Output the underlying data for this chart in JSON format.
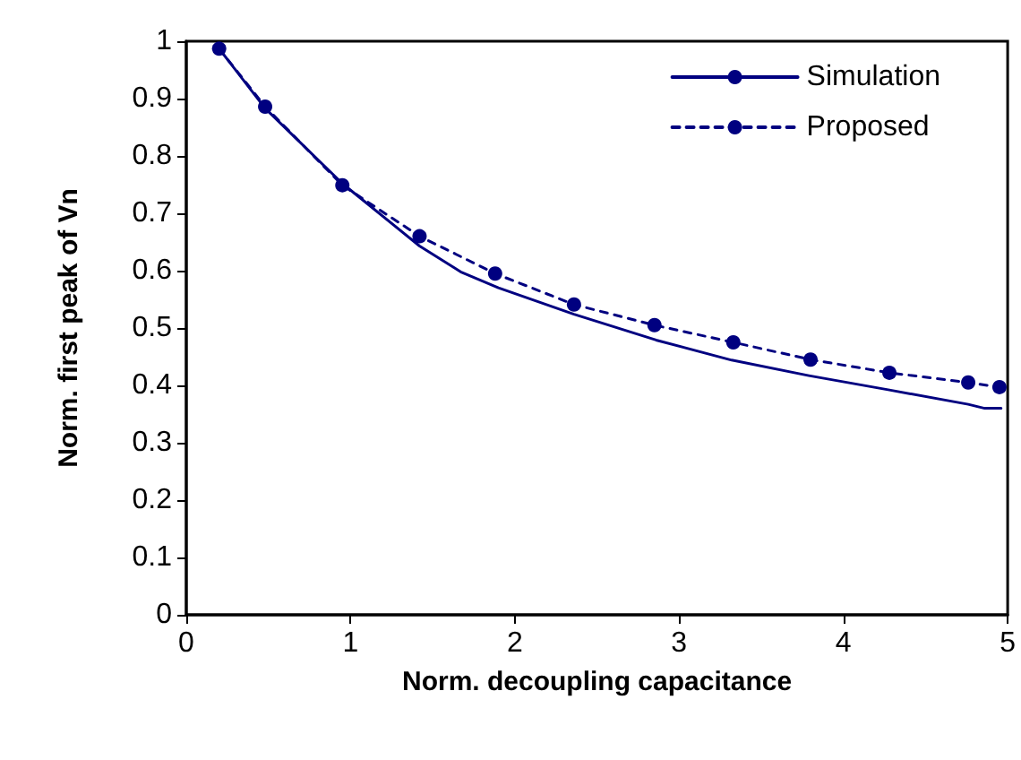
{
  "chart_data": {
    "type": "line",
    "xlabel": "Norm. decoupling capacitance",
    "ylabel": "Norm. first peak of Vn",
    "xlim": [
      0,
      5
    ],
    "xticks": [
      0,
      1,
      2,
      3,
      4,
      5
    ],
    "ylim": [
      0,
      1
    ],
    "yticks": [
      0,
      0.1,
      0.2,
      0.3,
      0.4,
      0.5,
      0.6,
      0.7,
      0.8,
      0.9,
      1
    ],
    "grid": false,
    "legend": "top right",
    "series": [
      {
        "name": "Simulation",
        "color": "#000080",
        "line_style": "solid",
        "marker": "none",
        "x": [
          0.2,
          0.48,
          0.95,
          1.42,
          1.67,
          1.9,
          2.36,
          2.86,
          3.32,
          3.79,
          4.28,
          4.76,
          4.86,
          4.96
        ],
        "values": [
          0.987,
          0.883,
          0.752,
          0.643,
          0.598,
          0.57,
          0.524,
          0.479,
          0.444,
          0.417,
          0.392,
          0.367,
          0.36,
          0.36
        ]
      },
      {
        "name": "Proposed",
        "color": "#000080",
        "line_style": "dashed",
        "marker": "circle",
        "x": [
          0.2,
          0.48,
          0.95,
          1.42,
          1.88,
          2.36,
          2.85,
          3.33,
          3.8,
          4.28,
          4.76,
          4.95
        ],
        "values": [
          0.987,
          0.886,
          0.749,
          0.66,
          0.595,
          0.541,
          0.505,
          0.475,
          0.445,
          0.422,
          0.405,
          0.397
        ]
      }
    ]
  }
}
